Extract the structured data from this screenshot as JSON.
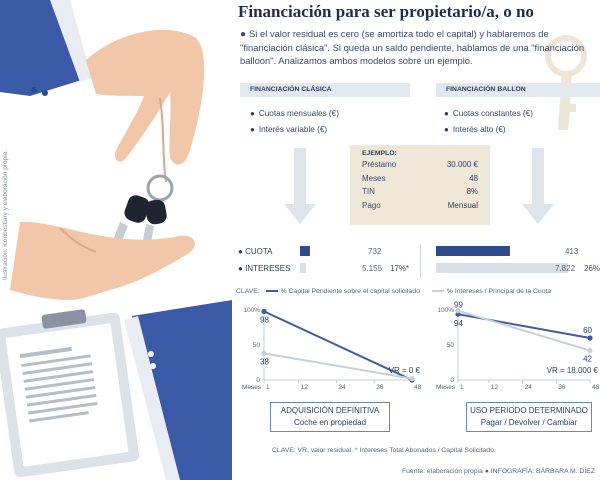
{
  "title": "Financiación para ser propietario/a, o no",
  "intro": "Si el valor residual es cero (se amortiza todo el capital) y hablaremos de \"financiación clásica\". Si queda un saldo pendiente, hablamos de una \"financiación balloon\". Analizamos ambos modelos sobre un ejemplo.",
  "side_credit": "Ilustración: iconbestiary y elaboración propia.",
  "clasica": {
    "header": "FINANCIACIÓN CLÁSICA",
    "bullets": [
      "Cuotas mensuales (€)",
      "Interés variable (€)"
    ],
    "box_title": "ADQUISICIÓN DEFINITIVA",
    "box_sub": "Coche en propiedad"
  },
  "balloon": {
    "header": "FINANCIACIÓN BALLON",
    "bullets": [
      "Cuotas constantes (€)",
      "Interés alto (€)"
    ],
    "box_title": "USO PERIODO DETERMINADO",
    "box_sub": "Pagar / Devolver / Cambiar"
  },
  "ejemplo": {
    "header": "EJEMPLO:",
    "rows": [
      {
        "label": "Préstamo",
        "value": "30.000 €"
      },
      {
        "label": "Meses",
        "value": "48"
      },
      {
        "label": "TIN",
        "value": "8%"
      },
      {
        "label": "Pago",
        "value": "Mensual"
      }
    ]
  },
  "labels": {
    "cuota": "CUOTA",
    "intereses": "INTERESES",
    "clave": "CLAVE:",
    "meses": "Meses"
  },
  "colors": {
    "navy": "#2e4a8e",
    "lightbar": "#d9dee8",
    "blueline": "#3d5ba8",
    "greyline": "#c9ced8",
    "beige": "#efe8d9",
    "header": "#e3e7ee"
  },
  "chart_data": [
    {
      "type": "bar",
      "title": "",
      "categories": [
        "CUOTA",
        "INTERESES"
      ],
      "series": [
        {
          "name": "Financiación clásica",
          "values": [
            732,
            5155
          ],
          "labels": [
            "732",
            "5.155"
          ],
          "pct_label": "17%*"
        },
        {
          "name": "Financiación balloon",
          "values": [
            413,
            7822
          ],
          "labels": [
            "413",
            "7.822"
          ],
          "pct_label": "26%*"
        }
      ]
    },
    {
      "type": "line",
      "title": "",
      "xlabel": "Meses",
      "x_ticks": [
        "1",
        "12",
        "24",
        "36",
        "48"
      ],
      "y_ticks": [
        "100%",
        "50",
        "0"
      ],
      "xlim": [
        1,
        48
      ],
      "ylim": [
        0,
        100
      ],
      "legend": [
        "% Capital Pendiente sobre el capital solicitado",
        "% Intereses / Principal de la Cuota"
      ],
      "series": [
        {
          "name": "% Capital Pendiente sobre el capital solicitado",
          "x": [
            1,
            48
          ],
          "y": [
            98,
            0
          ],
          "labels": [
            "98",
            ""
          ]
        },
        {
          "name": "% Intereses / Principal de la Cuota",
          "x": [
            1,
            48
          ],
          "y": [
            38,
            2
          ],
          "labels": [
            "38",
            ""
          ]
        }
      ],
      "annotation": "VR = 0 €"
    },
    {
      "type": "line",
      "title": "",
      "xlabel": "Meses",
      "x_ticks": [
        "1",
        "12",
        "24",
        "36",
        "48"
      ],
      "y_ticks": [
        "100%",
        "50",
        "0"
      ],
      "xlim": [
        1,
        48
      ],
      "ylim": [
        0,
        100
      ],
      "series": [
        {
          "name": "% Capital Pendiente sobre el capital solicitado",
          "x": [
            1,
            48
          ],
          "y": [
            94,
            60
          ],
          "labels": [
            "94",
            "60"
          ]
        },
        {
          "name": "% Intereses / Principal de la Cuota",
          "x": [
            1,
            48
          ],
          "y": [
            99,
            42
          ],
          "labels": [
            "99",
            "42"
          ]
        }
      ],
      "annotation": "VR = 18.000 €"
    }
  ],
  "footnote": "CLAVE: VR, valor residual. * Intereses Total Abonados / Capital Solicitado.",
  "source": "Fuente: elaboración propia ● INFOGRAFÍA: BÁRBARA M. DÍEZ"
}
